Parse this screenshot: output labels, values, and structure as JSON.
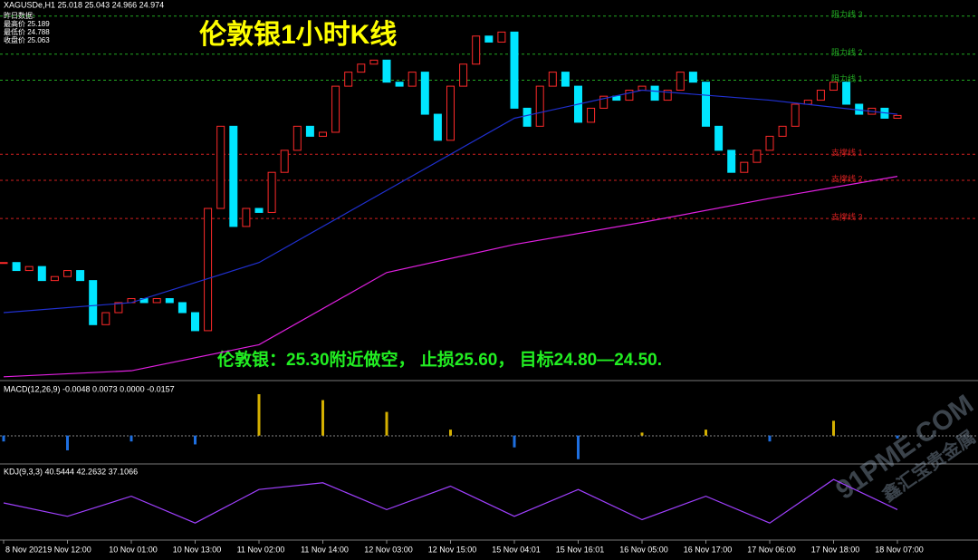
{
  "chart_data": {
    "type": "candlestick",
    "title": "伦敦银1小时K线",
    "symbol_header": "XAGUSDe,H1  25.018 25.043 24.966 24.974",
    "yesterday": {
      "title": "昨日数据:",
      "rows": [
        "最高价 25.189",
        "最低价 24.788",
        "收盘价 25.063"
      ]
    },
    "annotation": "伦敦银：25.30附近做空， 止损25.60， 目标24.80—24.50.",
    "categories": [
      "8 Nov 2021",
      null,
      null,
      null,
      null,
      "9 Nov 12:00",
      null,
      null,
      null,
      null,
      "10 Nov 01:00",
      null,
      null,
      null,
      null,
      "10 Nov 13:00",
      null,
      null,
      null,
      null,
      "11 Nov 02:00",
      null,
      null,
      null,
      null,
      "11 Nov 14:00",
      null,
      null,
      null,
      null,
      "12 Nov 03:00",
      null,
      null,
      null,
      null,
      "12 Nov 15:00",
      null,
      null,
      null,
      null,
      "15 Nov 04:01",
      null,
      null,
      null,
      null,
      "15 Nov 16:01",
      null,
      null,
      null,
      null,
      "16 Nov 05:00",
      null,
      null,
      null,
      null,
      "16 Nov 17:00",
      null,
      null,
      null,
      null,
      "17 Nov 06:00",
      null,
      null,
      null,
      null,
      "17 Nov 18:00",
      null,
      null,
      null,
      null,
      "18 Nov 07:00"
    ],
    "values": [
      24.24,
      24.2,
      24.22,
      24.15,
      24.17,
      24.2,
      24.15,
      23.93,
      23.99,
      24.04,
      24.06,
      24.04,
      24.06,
      24.04,
      23.99,
      23.9,
      24.51,
      24.92,
      24.42,
      24.51,
      24.49,
      24.69,
      24.8,
      24.92,
      24.87,
      24.89,
      25.12,
      25.19,
      25.23,
      25.25,
      25.14,
      25.12,
      25.19,
      24.98,
      24.85,
      25.12,
      25.23,
      25.37,
      25.34,
      25.39,
      25.01,
      24.92,
      25.12,
      25.19,
      25.12,
      24.94,
      25.01,
      25.07,
      25.05,
      25.1,
      25.12,
      25.05,
      25.1,
      25.19,
      25.14,
      24.92,
      24.8,
      24.69,
      24.74,
      24.8,
      24.87,
      24.92,
      25.03,
      25.05,
      25.1,
      25.14,
      25.03,
      24.98,
      25.01,
      24.96,
      24.974
    ],
    "up_color": "#ff2a2a",
    "down_color": "#00e5ff",
    "ylim": [
      23.66,
      25.55
    ],
    "levels": [
      {
        "label": "阻力线 3",
        "value": 25.47,
        "color": "#22a822"
      },
      {
        "label": "阻力线 2",
        "value": 25.28,
        "color": "#22a822"
      },
      {
        "label": "阻力线 1",
        "value": 25.15,
        "color": "#22a822"
      },
      {
        "label": "支撑线 1",
        "value": 24.78,
        "color": "#d02020"
      },
      {
        "label": "支撑线 2",
        "value": 24.65,
        "color": "#d02020"
      },
      {
        "label": "支撑线 3",
        "value": 24.46,
        "color": "#d02020"
      }
    ],
    "moving_averages": [
      {
        "color": "#e020e0",
        "x": [
          0,
          10,
          20,
          30,
          40,
          50,
          60,
          70
        ],
        "values": [
          23.67,
          23.7,
          23.83,
          24.19,
          24.33,
          24.44,
          24.56,
          24.67
        ]
      },
      {
        "color": "#2030d0",
        "x": [
          0,
          10,
          20,
          30,
          40,
          50,
          60,
          70
        ],
        "values": [
          23.99,
          24.04,
          24.24,
          24.6,
          24.96,
          25.1,
          25.05,
          24.98
        ]
      }
    ],
    "macd": {
      "label": "MACD(12,26,9) -0.0048 0.0073 0.0000 -0.0157",
      "x": [
        0,
        5,
        10,
        15,
        20,
        25,
        30,
        35,
        40,
        45,
        50,
        55,
        60,
        65,
        70
      ],
      "values": [
        -0.02,
        -0.05,
        -0.02,
        -0.03,
        0.14,
        0.12,
        0.08,
        0.02,
        -0.04,
        -0.08,
        0.01,
        0.02,
        -0.02,
        0.05,
        -0.01
      ],
      "ylim": [
        -0.09,
        0.18
      ],
      "up_color": "#d4b000",
      "down_color": "#1e6fe0"
    },
    "kdj": {
      "label": "KDJ(9,3,3) 40.5444 42.2632 37.1066",
      "x": [
        0,
        5,
        10,
        15,
        20,
        25,
        30,
        35,
        40,
        45,
        50,
        55,
        60,
        65,
        70
      ],
      "values": [
        50,
        30,
        60,
        20,
        70,
        80,
        40,
        75,
        30,
        70,
        25,
        60,
        20,
        85,
        40
      ],
      "ylim": [
        0,
        100
      ],
      "color": "#a040ff"
    },
    "watermark": [
      "91PME.COM",
      "鑫汇宝贵金属"
    ]
  }
}
